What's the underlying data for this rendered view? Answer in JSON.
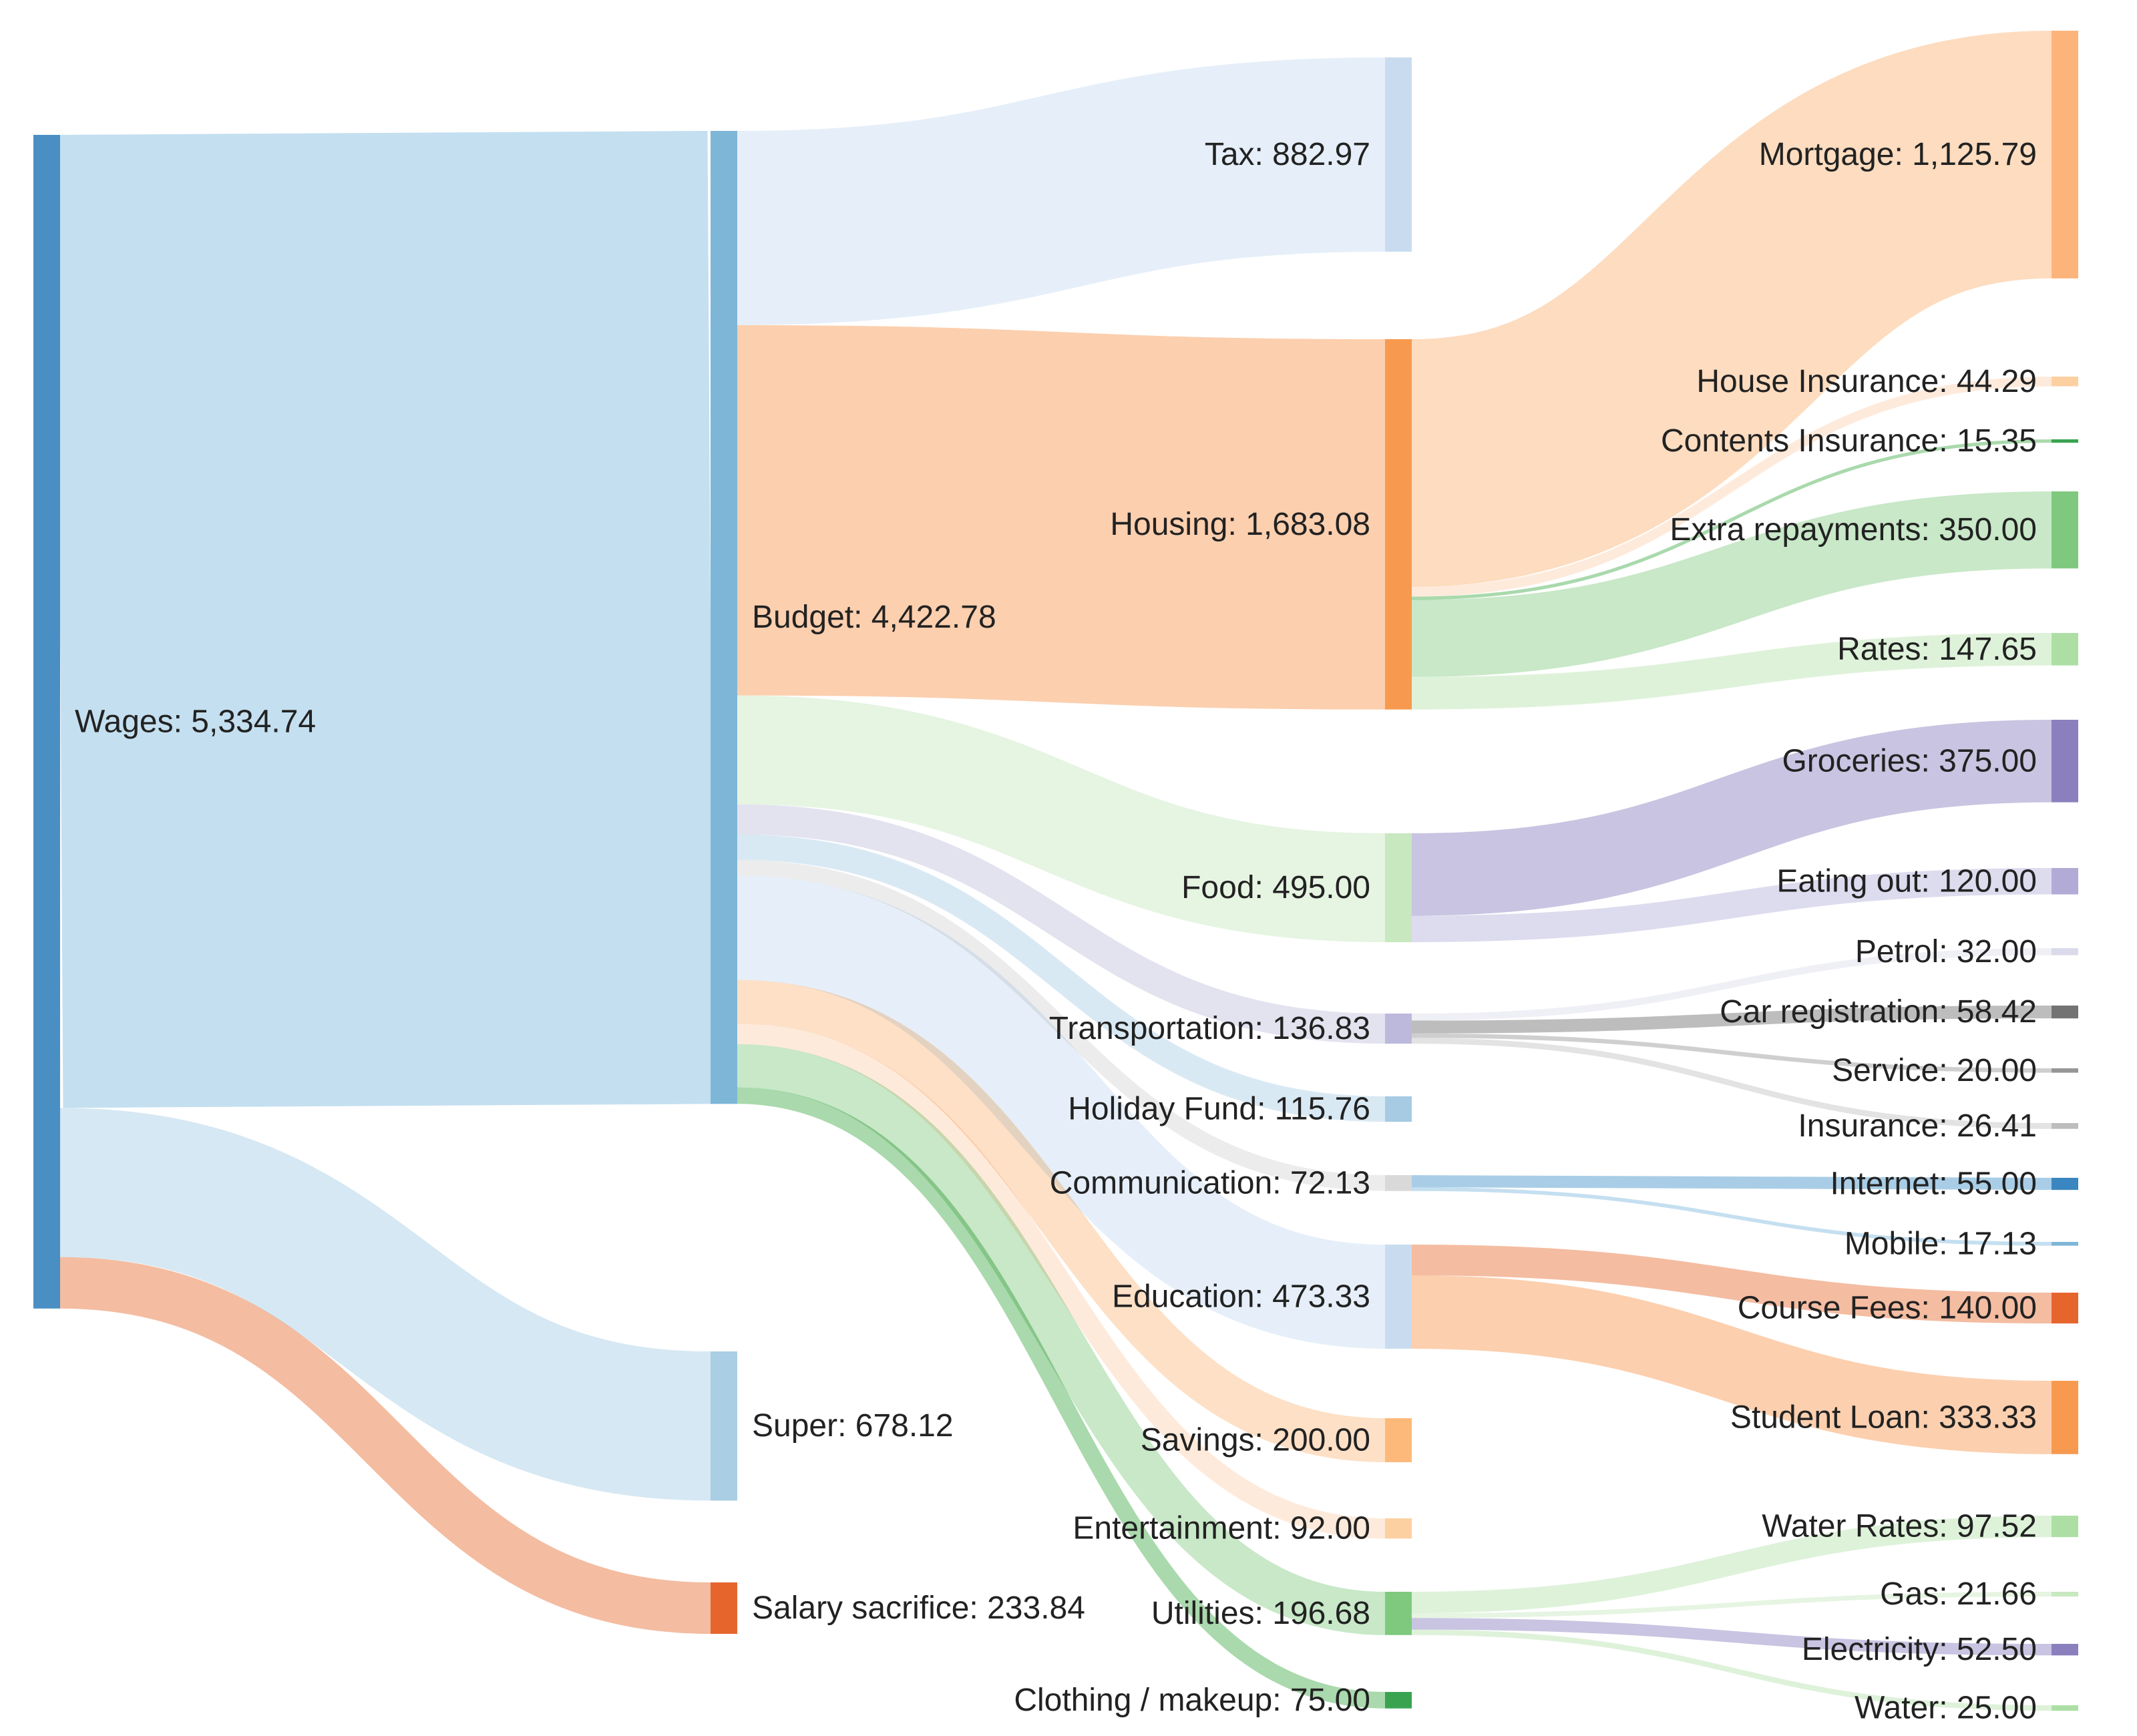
{
  "chart_data": {
    "type": "sankey",
    "nodes": [
      {
        "id": "wages",
        "label": "Wages: 5,334.74",
        "value": 5334.74,
        "color": "#4a8fc4"
      },
      {
        "id": "budget",
        "label": "Budget: 4,422.78",
        "value": 4422.78,
        "color": "#7eb6d8"
      },
      {
        "id": "super",
        "label": "Super: 678.12",
        "value": 678.12,
        "color": "#aacee4"
      },
      {
        "id": "salary_sacrifice",
        "label": "Salary sacrifice: 233.84",
        "value": 233.84,
        "color": "#e6652d"
      },
      {
        "id": "tax",
        "label": "Tax: 882.97",
        "value": 882.97,
        "color": "#c9dcef"
      },
      {
        "id": "housing",
        "label": "Housing: 1,683.08",
        "value": 1683.08,
        "color": "#f79a4f"
      },
      {
        "id": "food",
        "label": "Food: 495.00",
        "value": 495.0,
        "color": "#c8e8c0"
      },
      {
        "id": "transportation",
        "label": "Transportation: 136.83",
        "value": 136.83,
        "color": "#bcb9dc"
      },
      {
        "id": "holiday_fund",
        "label": "Holiday Fund: 115.76",
        "value": 115.76,
        "color": "#a6cbe3"
      },
      {
        "id": "communication",
        "label": "Communication: 72.13",
        "value": 72.13,
        "color": "#d9d9d9"
      },
      {
        "id": "education",
        "label": "Education: 473.33",
        "value": 473.33,
        "color": "#c9dcef"
      },
      {
        "id": "savings",
        "label": "Savings: 200.00",
        "value": 200.0,
        "color": "#fdb97a"
      },
      {
        "id": "entertainment",
        "label": "Entertainment: 92.00",
        "value": 92.0,
        "color": "#fdd0a2"
      },
      {
        "id": "utilities",
        "label": "Utilities: 196.68",
        "value": 196.68,
        "color": "#7fc97f"
      },
      {
        "id": "clothing",
        "label": "Clothing / makeup: 75.00",
        "value": 75.0,
        "color": "#3aa350"
      },
      {
        "id": "mortgage",
        "label": "Mortgage: 1,125.79",
        "value": 1125.79,
        "color": "#fdb47a"
      },
      {
        "id": "house_insurance",
        "label": "House Insurance: 44.29",
        "value": 44.29,
        "color": "#fdd0a2"
      },
      {
        "id": "contents_insurance",
        "label": "Contents Insurance: 15.35",
        "value": 15.35,
        "color": "#3aa350"
      },
      {
        "id": "extra_repayments",
        "label": "Extra repayments: 350.00",
        "value": 350.0,
        "color": "#7fc97f"
      },
      {
        "id": "rates",
        "label": "Rates: 147.65",
        "value": 147.65,
        "color": "#addfa4"
      },
      {
        "id": "groceries",
        "label": "Groceries: 375.00",
        "value": 375.0,
        "color": "#8b80bd"
      },
      {
        "id": "eating_out",
        "label": "Eating out: 120.00",
        "value": 120.0,
        "color": "#b1abd6"
      },
      {
        "id": "petrol",
        "label": "Petrol: 32.00",
        "value": 32.0,
        "color": "#dadaeb"
      },
      {
        "id": "car_registration",
        "label": "Car registration: 58.42",
        "value": 58.42,
        "color": "#737373"
      },
      {
        "id": "service",
        "label": "Service: 20.00",
        "value": 20.0,
        "color": "#969696"
      },
      {
        "id": "insurance",
        "label": "Insurance: 26.41",
        "value": 26.41,
        "color": "#bdbdbd"
      },
      {
        "id": "internet",
        "label": "Internet: 55.00",
        "value": 55.0,
        "color": "#3a86c1"
      },
      {
        "id": "mobile",
        "label": "Mobile: 17.13",
        "value": 17.13,
        "color": "#7eb6d8"
      },
      {
        "id": "course_fees",
        "label": "Course Fees: 140.00",
        "value": 140.0,
        "color": "#e6652d"
      },
      {
        "id": "student_loan",
        "label": "Student Loan: 333.33",
        "value": 333.33,
        "color": "#f79a4f"
      },
      {
        "id": "water_rates",
        "label": "Water Rates: 97.52",
        "value": 97.52,
        "color": "#addfa4"
      },
      {
        "id": "gas",
        "label": "Gas: 21.66",
        "value": 21.66,
        "color": "#c8e8c0"
      },
      {
        "id": "electricity",
        "label": "Electricity: 52.50",
        "value": 52.5,
        "color": "#8b80bd"
      },
      {
        "id": "water",
        "label": "Water: 25.00",
        "value": 25.0,
        "color": "#addfa4"
      }
    ],
    "links": [
      {
        "source": "wages",
        "target": "budget",
        "value": 4422.78,
        "color": "#c4dff0"
      },
      {
        "source": "wages",
        "target": "super",
        "value": 678.12,
        "color": "#d6e8f3"
      },
      {
        "source": "wages",
        "target": "salary_sacrifice",
        "value": 233.84,
        "color": "#f4bca1"
      },
      {
        "source": "budget",
        "target": "tax",
        "value": 882.97,
        "color": "#e6eff9"
      },
      {
        "source": "budget",
        "target": "housing",
        "value": 1683.08,
        "color": "#fccfae"
      },
      {
        "source": "budget",
        "target": "food",
        "value": 495.0,
        "color": "#e6f4e2"
      },
      {
        "source": "budget",
        "target": "transportation",
        "value": 136.83,
        "color": "#e3e2ef"
      },
      {
        "source": "budget",
        "target": "holiday_fund",
        "value": 115.76,
        "color": "#d9e9f4"
      },
      {
        "source": "budget",
        "target": "communication",
        "value": 72.13,
        "color": "#ececec"
      },
      {
        "source": "budget",
        "target": "education",
        "value": 473.33,
        "color": "#e6eff9"
      },
      {
        "source": "budget",
        "target": "savings",
        "value": 200.0,
        "color": "#fde0c6"
      },
      {
        "source": "budget",
        "target": "entertainment",
        "value": 92.0,
        "color": "#feeadb"
      },
      {
        "source": "budget",
        "target": "utilities",
        "value": 196.68,
        "color": "#c8e8c8"
      },
      {
        "source": "budget",
        "target": "clothing",
        "value": 75.0,
        "color": "#a9d9ac"
      },
      {
        "source": "housing",
        "target": "mortgage",
        "value": 1125.79,
        "color": "#fddcbf"
      },
      {
        "source": "housing",
        "target": "house_insurance",
        "value": 44.29,
        "color": "#feeadb"
      },
      {
        "source": "housing",
        "target": "contents_insurance",
        "value": 15.35,
        "color": "#a9d9ac"
      },
      {
        "source": "housing",
        "target": "extra_repayments",
        "value": 350.0,
        "color": "#c8e8c8"
      },
      {
        "source": "housing",
        "target": "rates",
        "value": 147.65,
        "color": "#def2da"
      },
      {
        "source": "food",
        "target": "groceries",
        "value": 375.0,
        "color": "#c8c4e1"
      },
      {
        "source": "food",
        "target": "eating_out",
        "value": 120.0,
        "color": "#dddbee"
      },
      {
        "source": "transportation",
        "target": "petrol",
        "value": 32.0,
        "color": "#efeff6"
      },
      {
        "source": "transportation",
        "target": "car_registration",
        "value": 58.42,
        "color": "#bdbdbd"
      },
      {
        "source": "transportation",
        "target": "service",
        "value": 20.0,
        "color": "#cfcfcf"
      },
      {
        "source": "transportation",
        "target": "insurance",
        "value": 26.41,
        "color": "#e3e3e3"
      },
      {
        "source": "communication",
        "target": "internet",
        "value": 55.0,
        "color": "#a9cde6"
      },
      {
        "source": "communication",
        "target": "mobile",
        "value": 17.13,
        "color": "#c4dff0"
      },
      {
        "source": "education",
        "target": "course_fees",
        "value": 140.0,
        "color": "#f4bca1"
      },
      {
        "source": "education",
        "target": "student_loan",
        "value": 333.33,
        "color": "#fccfae"
      },
      {
        "source": "utilities",
        "target": "water_rates",
        "value": 97.52,
        "color": "#def2da"
      },
      {
        "source": "utilities",
        "target": "gas",
        "value": 21.66,
        "color": "#e6f4e2"
      },
      {
        "source": "utilities",
        "target": "electricity",
        "value": 52.5,
        "color": "#c8c4e1"
      },
      {
        "source": "utilities",
        "target": "water",
        "value": 25.0,
        "color": "#def2da"
      }
    ]
  }
}
